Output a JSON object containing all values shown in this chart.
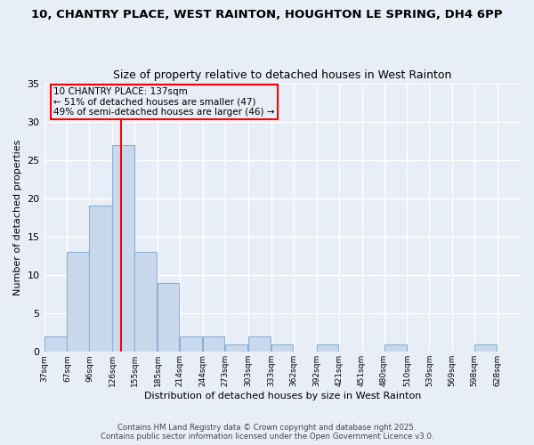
{
  "title_line1": "10, CHANTRY PLACE, WEST RAINTON, HOUGHTON LE SPRING, DH4 6PP",
  "title_line2": "Size of property relative to detached houses in West Rainton",
  "xlabel": "Distribution of detached houses by size in West Rainton",
  "ylabel": "Number of detached properties",
  "bins": [
    37,
    67,
    96,
    126,
    155,
    185,
    214,
    244,
    273,
    303,
    333,
    362,
    392,
    421,
    451,
    480,
    510,
    539,
    569,
    598,
    628
  ],
  "bin_labels": [
    "37sqm",
    "67sqm",
    "96sqm",
    "126sqm",
    "155sqm",
    "185sqm",
    "214sqm",
    "244sqm",
    "273sqm",
    "303sqm",
    "333sqm",
    "362sqm",
    "392sqm",
    "421sqm",
    "451sqm",
    "480sqm",
    "510sqm",
    "539sqm",
    "569sqm",
    "598sqm",
    "628sqm"
  ],
  "values": [
    2,
    13,
    19,
    27,
    13,
    9,
    2,
    2,
    1,
    2,
    1,
    0,
    1,
    0,
    0,
    1,
    0,
    0,
    0,
    1,
    0
  ],
  "bar_color": "#c9d9ed",
  "bar_edgecolor": "#8aafd4",
  "bar_linewidth": 0.8,
  "subject_value": 137,
  "subject_line_color": "red",
  "annotation_text": "10 CHANTRY PLACE: 137sqm\n← 51% of detached houses are smaller (47)\n49% of semi-detached houses are larger (46) →",
  "annotation_box_color": "red",
  "ylim": [
    0,
    35
  ],
  "yticks": [
    0,
    5,
    10,
    15,
    20,
    25,
    30,
    35
  ],
  "background_color": "#e8eef8",
  "grid_color": "#ffffff",
  "footer_line1": "Contains HM Land Registry data © Crown copyright and database right 2025.",
  "footer_line2": "Contains public sector information licensed under the Open Government Licence v3.0."
}
